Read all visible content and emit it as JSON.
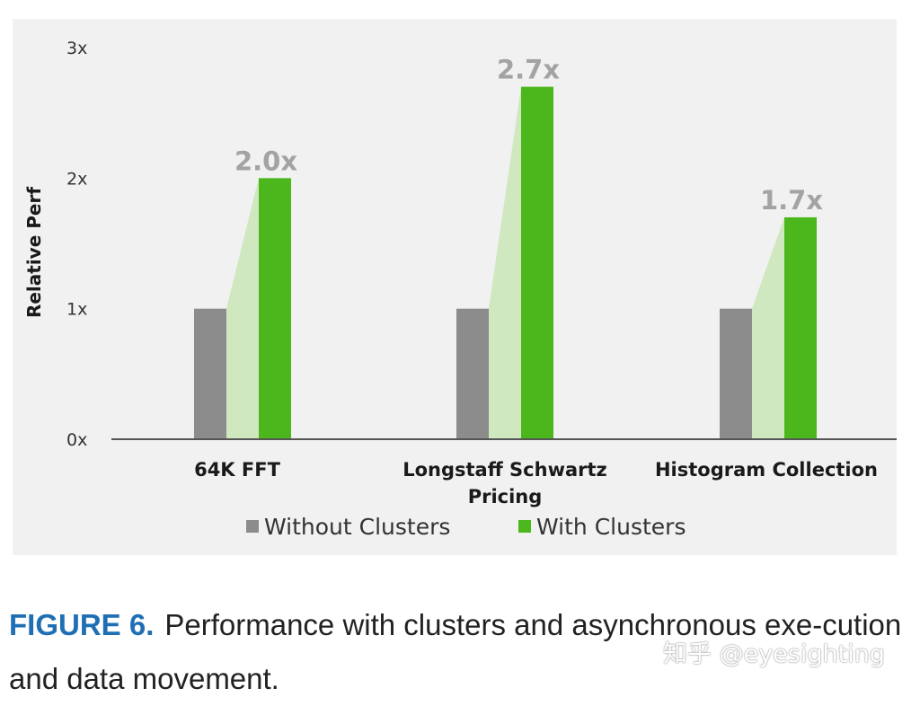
{
  "chart_data": {
    "type": "bar",
    "ylabel": "Relative Perf",
    "xlabel": "",
    "ylim": [
      0,
      3
    ],
    "yticks": [
      {
        "value": 0,
        "label": "0x"
      },
      {
        "value": 1,
        "label": "1x"
      },
      {
        "value": 2,
        "label": "2x"
      },
      {
        "value": 3,
        "label": "3x"
      }
    ],
    "categories": [
      {
        "lines": [
          "64K FFT"
        ]
      },
      {
        "lines": [
          "Longstaff Schwartz",
          "Pricing"
        ]
      },
      {
        "lines": [
          "Histogram Collection"
        ]
      }
    ],
    "series": [
      {
        "name": "Without Clusters",
        "color": "#8c8c8c",
        "values": [
          1.0,
          1.0,
          1.0
        ]
      },
      {
        "name": "With Clusters",
        "color": "#4cb71c",
        "values": [
          2.0,
          2.7,
          1.7
        ]
      }
    ],
    "data_labels": [
      "2.0x",
      "2.7x",
      "1.7x"
    ],
    "connector_color": "#cfe8bf",
    "legend_position": "bottom",
    "grid": false
  },
  "caption": {
    "figure_label": "FIGURE 6.",
    "text": "Performance with clusters and asynchronous exe-cution and data movement."
  },
  "watermark": "知乎 @eyesighting",
  "colors": {
    "panel_bg": "#f1f1f1",
    "figure_label": "#1f6fb5",
    "data_label": "#a3a3a3"
  }
}
